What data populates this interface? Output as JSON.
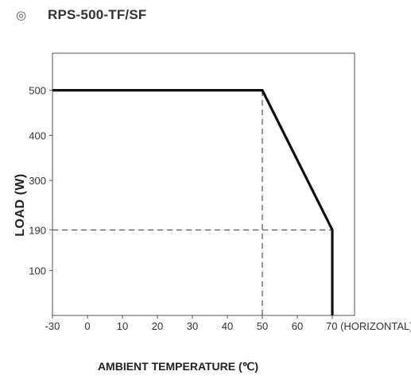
{
  "header": {
    "mark": "◎",
    "title": "RPS-500-TF/SF"
  },
  "chart_data": {
    "type": "line",
    "title": "",
    "xlabel": "AMBIENT TEMPERATURE (℃)",
    "ylabel": "LOAD (W)",
    "xlim": [
      -30,
      73
    ],
    "ylim": [
      0,
      560
    ],
    "x_ticks": [
      -30,
      0,
      10,
      20,
      30,
      40,
      50,
      60,
      70
    ],
    "x_tick_labels": [
      "-30",
      "0",
      "10",
      "20",
      "30",
      "40",
      "50",
      "60",
      "70 (HORIZONTAL)"
    ],
    "y_ticks": [
      100,
      190,
      300,
      400,
      500
    ],
    "y_tick_labels": [
      "100",
      "190",
      "300",
      "400",
      "500"
    ],
    "grid": false,
    "series": [
      {
        "x": [
          -30,
          50,
          70,
          70
        ],
        "y": [
          500,
          500,
          190,
          0
        ]
      }
    ],
    "reference_lines": [
      {
        "x": [
          -30,
          70
        ],
        "y": [
          190,
          190
        ],
        "style": "dashed"
      },
      {
        "x": [
          50,
          50
        ],
        "y": [
          0,
          500
        ],
        "style": "dashed"
      }
    ]
  }
}
